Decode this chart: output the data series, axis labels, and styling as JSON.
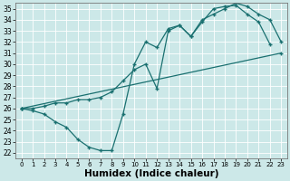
{
  "xlabel": "Humidex (Indice chaleur)",
  "xlim": [
    -0.5,
    23.5
  ],
  "ylim": [
    21.5,
    35.5
  ],
  "xticks": [
    0,
    1,
    2,
    3,
    4,
    5,
    6,
    7,
    8,
    9,
    10,
    11,
    12,
    13,
    14,
    15,
    16,
    17,
    18,
    19,
    20,
    21,
    22,
    23
  ],
  "yticks": [
    22,
    23,
    24,
    25,
    26,
    27,
    28,
    29,
    30,
    31,
    32,
    33,
    34,
    35
  ],
  "bg_color": "#cce8e8",
  "grid_color": "#b0d0d0",
  "line_color": "#1a7070",
  "line1_x": [
    0,
    1,
    2,
    3,
    4,
    5,
    6,
    7,
    8,
    9,
    10,
    11,
    12,
    13,
    14,
    15,
    16,
    17,
    18,
    19,
    20,
    21,
    22
  ],
  "line1_y": [
    26.0,
    25.8,
    25.5,
    24.8,
    24.3,
    23.2,
    22.5,
    22.2,
    22.2,
    25.5,
    30.0,
    32.0,
    31.5,
    33.2,
    33.5,
    32.5,
    33.8,
    35.0,
    35.2,
    35.3,
    34.5,
    33.8,
    31.8
  ],
  "line2_x": [
    0,
    1,
    2,
    3,
    4,
    5,
    6,
    7,
    8,
    9,
    10,
    11,
    12,
    13,
    14,
    15,
    16,
    17,
    18,
    19,
    20,
    21,
    22,
    23
  ],
  "line2_y": [
    26.0,
    26.0,
    26.2,
    26.5,
    26.5,
    26.8,
    26.8,
    27.0,
    27.5,
    28.5,
    29.5,
    30.0,
    27.8,
    33.0,
    33.5,
    32.5,
    34.0,
    34.5,
    35.0,
    35.5,
    35.2,
    34.5,
    34.0,
    32.0
  ],
  "line3_x": [
    0,
    23
  ],
  "line3_y": [
    26.0,
    31.0
  ],
  "tick_fontsize": 6
}
